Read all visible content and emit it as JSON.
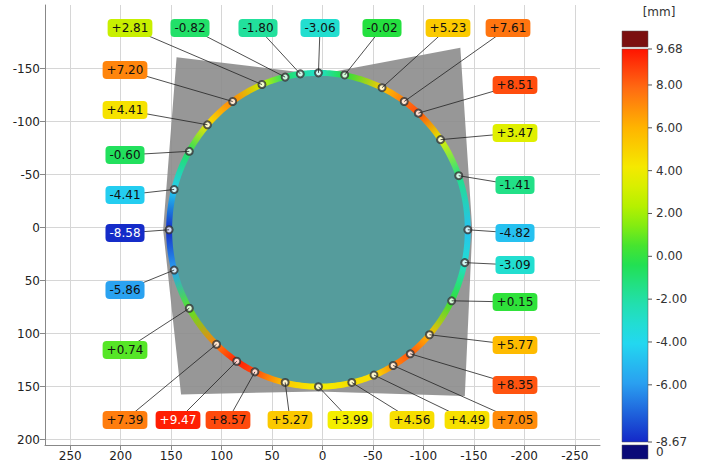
{
  "chart_data": {
    "type": "scatter",
    "marker": "circle",
    "grid": true,
    "data_labels": true,
    "xlim": [
      275,
      -275
    ],
    "xticks": [
      250,
      200,
      150,
      100,
      50,
      0,
      -50,
      -100,
      -150,
      -200,
      -250
    ],
    "ylim": [
      205,
      -210
    ],
    "yticks": [
      -150,
      -100,
      -50,
      0,
      50,
      100,
      150,
      200
    ],
    "x": [
      152,
      147,
      132,
      114,
      89,
      60,
      37,
      22,
      4,
      -22,
      -59,
      -81,
      -95,
      -117,
      -135,
      -144,
      -141,
      -128,
      -106,
      -87,
      -70,
      -51,
      -29,
      4,
      37,
      67,
      85,
      105,
      132,
      147
    ],
    "y": [
      2,
      -36,
      -72,
      -97,
      -119,
      -135,
      -142,
      -145,
      -146,
      -144,
      -132,
      -119,
      -108,
      -83,
      -49,
      2,
      33,
      69,
      101,
      119,
      130,
      139,
      146,
      150,
      146,
      136,
      126,
      110,
      76,
      40
    ],
    "values": [
      -8.58,
      -4.41,
      -0.6,
      4.41,
      7.2,
      2.81,
      -0.82,
      -1.8,
      -3.06,
      -0.02,
      5.23,
      7.61,
      8.51,
      3.47,
      -1.41,
      -4.82,
      -3.09,
      0.15,
      5.77,
      8.35,
      7.05,
      4.49,
      4.56,
      3.99,
      5.27,
      8.57,
      9.47,
      7.39,
      0.74,
      -5.86
    ],
    "value_labels": [
      "-8.58",
      "-4.41",
      "-0.60",
      "+4.41",
      "+7.20",
      "+2.81",
      "-0.82",
      "-1.80",
      "-3.06",
      "-0.02",
      "+5.23",
      "+7.61",
      "+8.51",
      "+3.47",
      "-1.41",
      "-4.82",
      "-3.09",
      "+0.15",
      "+5.77",
      "+8.35",
      "+7.05",
      "+4.49",
      "+4.56",
      "+3.99",
      "+5.27",
      "+8.57",
      "+9.47",
      "+7.39",
      "+0.74",
      "-5.86"
    ],
    "colorbar": {
      "label": "[mm]",
      "range": [
        -8.67,
        9.68
      ],
      "ticks": [
        9.68,
        {
          "value": 8,
          "label": "8.00"
        },
        {
          "value": 6,
          "label": "6.00"
        },
        {
          "value": 4,
          "label": "4.00"
        },
        {
          "value": 2,
          "label": "2.00"
        },
        {
          "value": 0,
          "label": "0.00"
        },
        {
          "value": -2,
          "label": "-2.00"
        },
        {
          "value": -4,
          "label": "-4.00"
        },
        {
          "value": -6,
          "label": "-6.00"
        },
        -8.67
      ],
      "below_range_count": 0
    }
  }
}
